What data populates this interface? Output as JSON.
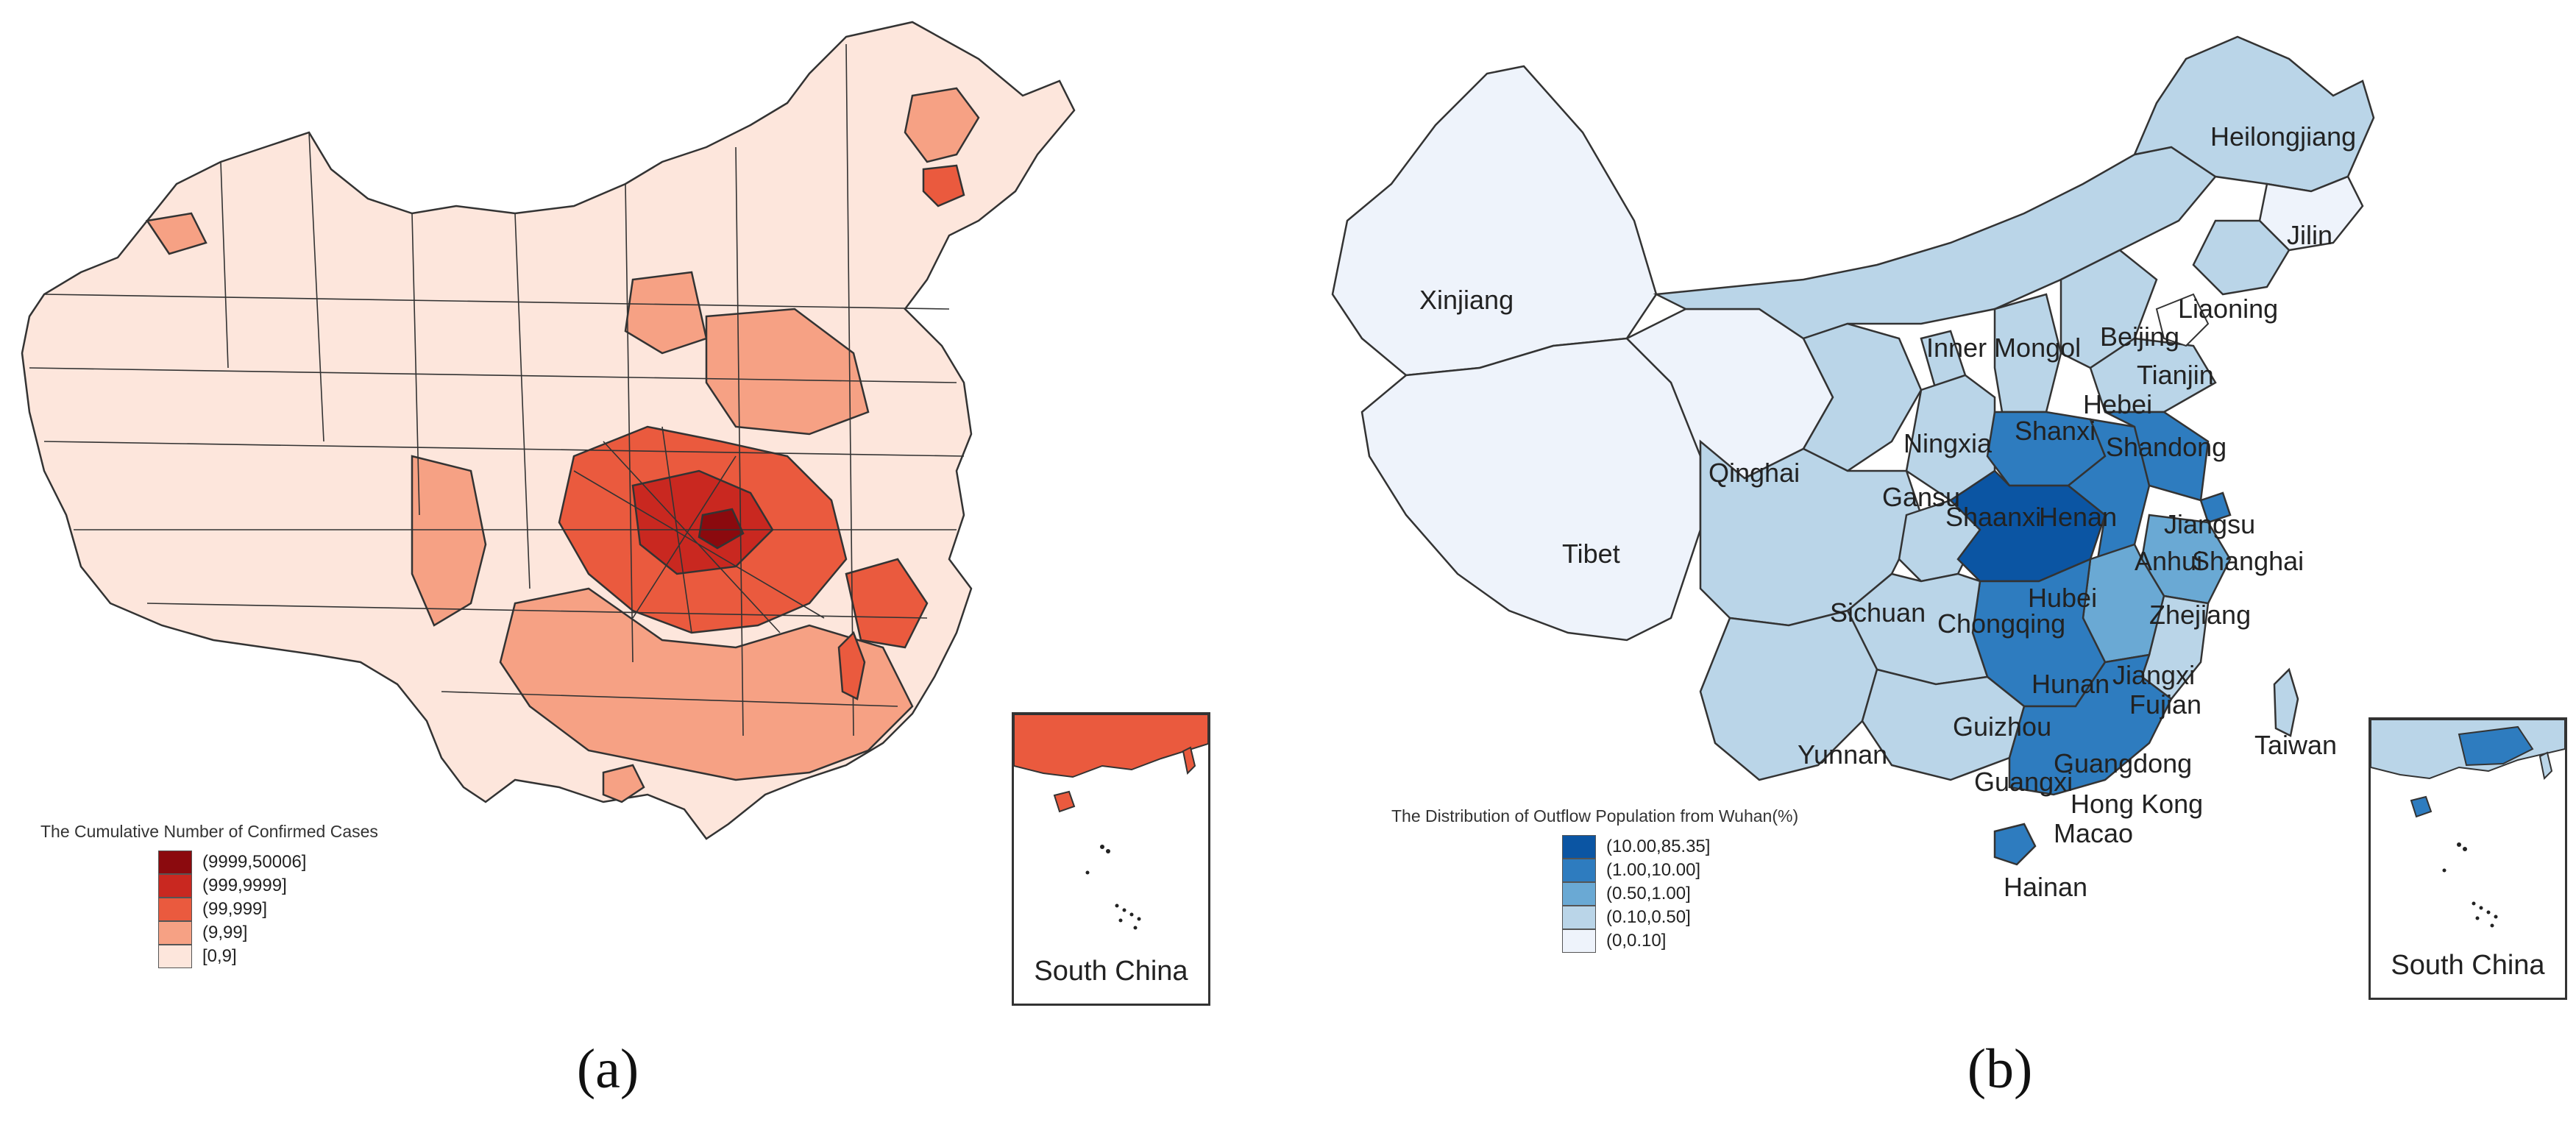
{
  "panel_a": {
    "caption": "(a)",
    "legend_title": "The Cumulative Number of Confirmed Cases",
    "legend_items": [
      {
        "label": "(9999,50006]",
        "color": "#8b0a0e"
      },
      {
        "label": "(999,9999]",
        "color": "#c92820"
      },
      {
        "label": "(99,999]",
        "color": "#ea5a3e"
      },
      {
        "label": "(9,99]",
        "color": "#f6a184"
      },
      {
        "label": "[0,9]",
        "color": "#fde6dc"
      }
    ],
    "inset_label": "South China"
  },
  "panel_b": {
    "caption": "(b)",
    "legend_title": "The Distribution of Outflow Population from Wuhan(%)",
    "legend_items": [
      {
        "label": "(10.00,85.35]",
        "color": "#0b55a3"
      },
      {
        "label": "(1.00,10.00]",
        "color": "#2e7cbf"
      },
      {
        "label": "(0.50,1.00]",
        "color": "#6aa9d4"
      },
      {
        "label": "(0.10,0.50]",
        "color": "#bad5e8"
      },
      {
        "label": "(0,0.10]",
        "color": "#eef3fb"
      }
    ],
    "inset_label": "South China",
    "province_labels": {
      "heilongjiang": "Heilongjiang",
      "jilin": "Jilin",
      "liaoning": "Liaoning",
      "xinjiang": "Xinjiang",
      "inner_mongolia": "Inner Mongol",
      "beijing": "Beijing",
      "tianjin": "Tianjin",
      "hebei": "Hebei",
      "ningxia": "Ningxia",
      "shanxi": "Shanxi",
      "shandong": "Shandong",
      "qinghai": "Qinghai",
      "gansu": "Gansu",
      "shaanxi": "Shaanxi",
      "henan": "Henan",
      "jiangsu": "Jiangsu",
      "shanghai": "Shanghai",
      "anhui": "Anhui",
      "tibet": "Tibet",
      "hubei": "Hubei",
      "sichuan": "Sichuan",
      "chongqing": "Chongqing",
      "zhejiang": "Zhejiang",
      "hunan": "Hunan",
      "jiangxi": "Jiangxi",
      "guizhou": "Guizhou",
      "fujian": "Fujian",
      "taiwan": "Taiwan",
      "yunnan": "Yunnan",
      "guangxi": "Guangxi",
      "guangdong": "Guangdong",
      "hong_kong": "Hong Kong",
      "macao": "Macao",
      "hainan": "Hainan"
    }
  }
}
